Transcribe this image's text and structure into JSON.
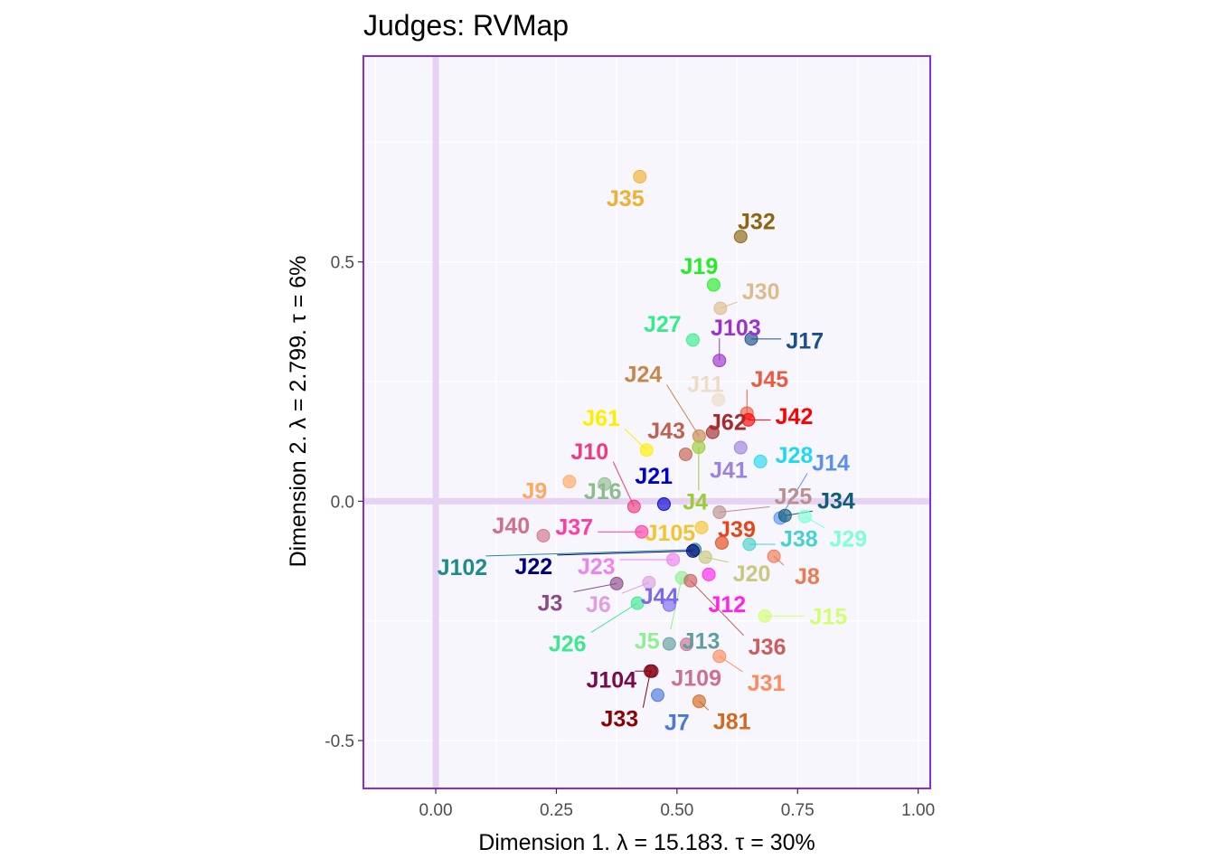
{
  "chart_data": {
    "type": "scatter",
    "title": "Judges: RVMap",
    "xlabel": "Dimension 1.   λ = 15.183.  τ = 30%",
    "ylabel": "Dimension 2.   λ = 2.799.  τ = 6%",
    "xlim": [
      -0.15,
      1.025
    ],
    "ylim": [
      -0.6,
      0.93
    ],
    "x_ticks": [
      {
        "v": 0.0,
        "label": "0.00"
      },
      {
        "v": 0.25,
        "label": "0.25"
      },
      {
        "v": 0.5,
        "label": "0.50"
      },
      {
        "v": 0.75,
        "label": "0.75"
      },
      {
        "v": 1.0,
        "label": "1.00"
      }
    ],
    "y_ticks": [
      {
        "v": 0.5,
        "label": "0.5"
      },
      {
        "v": 0.0,
        "label": "0.0"
      },
      {
        "v": -0.5,
        "label": "-0.5"
      }
    ],
    "grid": true,
    "background": "#f8f6fd",
    "panel_border_color": "#8a2be2",
    "reference_line_color": "#e6d2f3",
    "points": [
      {
        "name": "J35",
        "x": 0.423,
        "y": 0.678,
        "color": "#f0b030",
        "lx": 0.393,
        "ly": 0.633,
        "align": "middle"
      },
      {
        "name": "J32",
        "x": 0.632,
        "y": 0.553,
        "color": "#8b6510",
        "lx": 0.665,
        "ly": 0.585,
        "align": "middle"
      },
      {
        "name": "J19",
        "x": 0.576,
        "y": 0.452,
        "color": "#22ee22",
        "lx": 0.546,
        "ly": 0.492,
        "align": "middle"
      },
      {
        "name": "J30",
        "x": 0.59,
        "y": 0.403,
        "color": "#dcbc8c",
        "lx": 0.674,
        "ly": 0.439,
        "align": "middle"
      },
      {
        "name": "J27",
        "x": 0.533,
        "y": 0.337,
        "color": "#33ee88",
        "lx": 0.47,
        "ly": 0.371,
        "align": "middle"
      },
      {
        "name": "J103",
        "x": 0.588,
        "y": 0.294,
        "color": "#9a32cd",
        "lx": 0.622,
        "ly": 0.363,
        "align": "middle"
      },
      {
        "name": "J17",
        "x": 0.654,
        "y": 0.339,
        "color": "#1a4f8a",
        "lx": 0.765,
        "ly": 0.336,
        "align": "middle"
      },
      {
        "name": "J24",
        "x": 0.546,
        "y": 0.136,
        "color": "#c8864a",
        "lx": 0.43,
        "ly": 0.266,
        "align": "middle"
      },
      {
        "name": "J11",
        "x": 0.586,
        "y": 0.212,
        "color": "#ecdcc8",
        "lx": 0.559,
        "ly": 0.245,
        "align": "middle"
      },
      {
        "name": "J45",
        "x": 0.645,
        "y": 0.184,
        "color": "#ee5a40",
        "lx": 0.692,
        "ly": 0.256,
        "align": "middle"
      },
      {
        "name": "J61",
        "x": 0.437,
        "y": 0.107,
        "color": "#ffee00",
        "lx": 0.343,
        "ly": 0.174,
        "align": "middle"
      },
      {
        "name": "J42",
        "x": 0.648,
        "y": 0.17,
        "color": "#ff0000",
        "lx": 0.743,
        "ly": 0.178,
        "align": "middle"
      },
      {
        "name": "J43",
        "x": 0.518,
        "y": 0.098,
        "color": "#c06050",
        "lx": 0.478,
        "ly": 0.148,
        "align": "middle"
      },
      {
        "name": "J62",
        "x": 0.574,
        "y": 0.144,
        "color": "#a52a2a",
        "lx": 0.605,
        "ly": 0.166,
        "align": "middle"
      },
      {
        "name": "J10",
        "x": 0.411,
        "y": -0.011,
        "color": "#ee3a80",
        "lx": 0.319,
        "ly": 0.105,
        "align": "middle"
      },
      {
        "name": "J28",
        "x": 0.673,
        "y": 0.083,
        "color": "#22d8ee",
        "lx": 0.743,
        "ly": 0.097,
        "align": "middle"
      },
      {
        "name": "J14",
        "x": 0.714,
        "y": -0.035,
        "color": "#5b90ee",
        "lx": 0.819,
        "ly": 0.081,
        "align": "middle"
      },
      {
        "name": "J41",
        "x": 0.632,
        "y": 0.112,
        "color": "#9b82dc",
        "lx": 0.607,
        "ly": 0.066,
        "align": "middle"
      },
      {
        "name": "J21",
        "x": 0.473,
        "y": -0.006,
        "color": "#0000cd",
        "lx": 0.452,
        "ly": 0.054,
        "align": "middle"
      },
      {
        "name": "J9",
        "x": 0.277,
        "y": 0.041,
        "color": "#ffa860",
        "lx": 0.205,
        "ly": 0.022,
        "align": "middle"
      },
      {
        "name": "J16",
        "x": 0.35,
        "y": 0.036,
        "color": "#8fbc8f",
        "lx": 0.346,
        "ly": 0.021,
        "align": "middle"
      },
      {
        "name": "J4",
        "x": 0.545,
        "y": 0.113,
        "color": "#9acd32",
        "lx": 0.538,
        "ly": 0.0,
        "align": "middle"
      },
      {
        "name": "J25",
        "x": 0.588,
        "y": -0.023,
        "color": "#bc8f8f",
        "lx": 0.741,
        "ly": 0.011,
        "align": "middle"
      },
      {
        "name": "J34",
        "x": 0.724,
        "y": -0.03,
        "color": "#0e5e78",
        "lx": 0.83,
        "ly": 0.002,
        "align": "middle"
      },
      {
        "name": "J40",
        "x": 0.223,
        "y": -0.072,
        "color": "#d0708a",
        "lx": 0.156,
        "ly": -0.05,
        "align": "middle"
      },
      {
        "name": "J37",
        "x": 0.427,
        "y": -0.064,
        "color": "#ff3ba5",
        "lx": 0.287,
        "ly": -0.053,
        "align": "middle"
      },
      {
        "name": "J105",
        "x": 0.551,
        "y": -0.055,
        "color": "#f2c530",
        "lx": 0.486,
        "ly": -0.065,
        "align": "middle"
      },
      {
        "name": "J39",
        "x": 0.593,
        "y": -0.087,
        "color": "#e64616",
        "lx": 0.624,
        "ly": -0.058,
        "align": "middle"
      },
      {
        "name": "J38",
        "x": 0.65,
        "y": -0.09,
        "color": "#48d1cc",
        "lx": 0.753,
        "ly": -0.078,
        "align": "middle"
      },
      {
        "name": "J29",
        "x": 0.765,
        "y": -0.032,
        "color": "#7fffd4",
        "lx": 0.855,
        "ly": -0.078,
        "align": "middle"
      },
      {
        "name": "J102",
        "x": 0.537,
        "y": -0.101,
        "color": "#1e8b8b",
        "lx": 0.055,
        "ly": -0.137,
        "align": "middle"
      },
      {
        "name": "J22",
        "x": 0.533,
        "y": -0.104,
        "color": "#000080",
        "lx": 0.203,
        "ly": -0.135,
        "align": "middle"
      },
      {
        "name": "J23",
        "x": 0.492,
        "y": -0.122,
        "color": "#ee82ee",
        "lx": 0.333,
        "ly": -0.135,
        "align": "middle"
      },
      {
        "name": "J20",
        "x": 0.559,
        "y": -0.117,
        "color": "#c8c880",
        "lx": 0.655,
        "ly": -0.15,
        "align": "middle"
      },
      {
        "name": "J8",
        "x": 0.701,
        "y": -0.115,
        "color": "#ee7850",
        "lx": 0.77,
        "ly": -0.156,
        "align": "middle"
      },
      {
        "name": "J3",
        "x": 0.375,
        "y": -0.172,
        "color": "#8a4a8a",
        "lx": 0.237,
        "ly": -0.212,
        "align": "middle"
      },
      {
        "name": "J6",
        "x": 0.442,
        "y": -0.17,
        "color": "#dda0dd",
        "lx": 0.337,
        "ly": -0.215,
        "align": "middle"
      },
      {
        "name": "J44",
        "x": 0.484,
        "y": -0.217,
        "color": "#7b68ee",
        "lx": 0.464,
        "ly": -0.198,
        "align": "middle"
      },
      {
        "name": "J12",
        "x": 0.566,
        "y": -0.153,
        "color": "#ff22ee",
        "lx": 0.604,
        "ly": -0.215,
        "align": "middle"
      },
      {
        "name": "J15",
        "x": 0.682,
        "y": -0.24,
        "color": "#d0ff70",
        "lx": 0.814,
        "ly": -0.24,
        "align": "middle"
      },
      {
        "name": "J26",
        "x": 0.418,
        "y": -0.213,
        "color": "#3ce890",
        "lx": 0.273,
        "ly": -0.297,
        "align": "middle"
      },
      {
        "name": "J5",
        "x": 0.51,
        "y": -0.16,
        "color": "#8ff08f",
        "lx": 0.438,
        "ly": -0.291,
        "align": "middle"
      },
      {
        "name": "J13",
        "x": 0.484,
        "y": -0.298,
        "color": "#5f9ea0",
        "lx": 0.55,
        "ly": -0.291,
        "align": "middle"
      },
      {
        "name": "J36",
        "x": 0.528,
        "y": -0.166,
        "color": "#cd5c5c",
        "lx": 0.687,
        "ly": -0.303,
        "align": "middle"
      },
      {
        "name": "J31",
        "x": 0.588,
        "y": -0.324,
        "color": "#ff8a5c",
        "lx": 0.685,
        "ly": -0.379,
        "align": "middle"
      },
      {
        "name": "J104",
        "x": 0.448,
        "y": -0.355,
        "color": "#7b0a4c",
        "lx": 0.364,
        "ly": -0.372,
        "align": "middle"
      },
      {
        "name": "J109",
        "x": 0.52,
        "y": -0.299,
        "color": "#cc7090",
        "lx": 0.54,
        "ly": -0.369,
        "align": "middle"
      },
      {
        "name": "J33",
        "x": 0.445,
        "y": -0.355,
        "color": "#8b0000",
        "lx": 0.381,
        "ly": -0.454,
        "align": "middle"
      },
      {
        "name": "J7",
        "x": 0.46,
        "y": -0.405,
        "color": "#4a78dc",
        "lx": 0.5,
        "ly": -0.461,
        "align": "middle"
      },
      {
        "name": "J81",
        "x": 0.546,
        "y": -0.418,
        "color": "#d2691e",
        "lx": 0.614,
        "ly": -0.459,
        "align": "middle"
      }
    ]
  }
}
